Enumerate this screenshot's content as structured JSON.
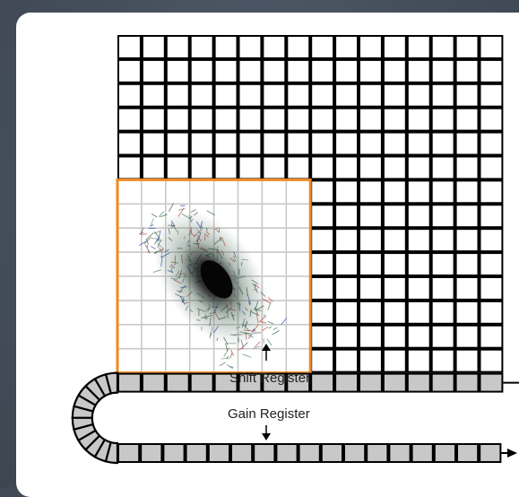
{
  "diagram": {
    "labels": {
      "shift_register": "Shift Register",
      "gain_register": "Gain Register"
    },
    "colors": {
      "grid_line": "#000000",
      "readout_cell": "#c8c8c8",
      "region_border": "#f08a24",
      "region_grid": "#c9c9c9",
      "background": "#ffffff"
    },
    "pixel_array": {
      "columns": 16,
      "rows": 14
    },
    "highlight_region": {
      "columns": 8,
      "rows": 8
    },
    "shift_register_cells": 16,
    "gain_register_cells": 17,
    "curve_segments": 12,
    "icons": [
      "arrow-right-icon",
      "arrow-up-icon",
      "arrow-down-icon"
    ]
  }
}
